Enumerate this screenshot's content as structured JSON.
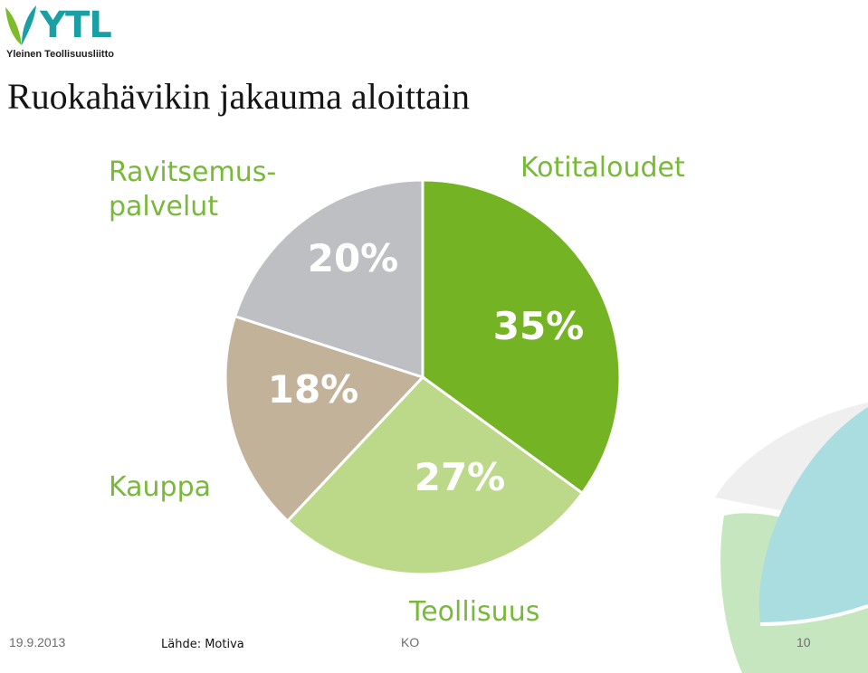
{
  "logo": {
    "name": "YTL",
    "tagline": "Yleinen Teollisuusliitto",
    "colors": {
      "leaf_green": "#7cbb2a",
      "leaf_blue": "#1aa0a4"
    }
  },
  "page": {
    "title": "Ruokahävikin jakauma aloittain"
  },
  "chart_data": {
    "type": "pie",
    "title": "",
    "legend": "none",
    "slices": [
      {
        "label": "Kotitaloudet",
        "value": 35,
        "value_label": "35%",
        "color": "#74b324"
      },
      {
        "label": "Teollisuus",
        "value": 27,
        "value_label": "27%",
        "color": "#bcd98a"
      },
      {
        "label": "Kauppa",
        "value": 18,
        "value_label": "18%",
        "color": "#c2b299"
      },
      {
        "label": "Ravitsemus-\npalvelut",
        "value": 20,
        "value_label": "20%",
        "color": "#bdbfc2"
      }
    ],
    "category_label_color": "#79b93a",
    "value_label_color": "#ffffff"
  },
  "footer": {
    "date": "19.9.2013",
    "source": "Lähde: Motiva",
    "author": "KO",
    "page_number": "10"
  }
}
